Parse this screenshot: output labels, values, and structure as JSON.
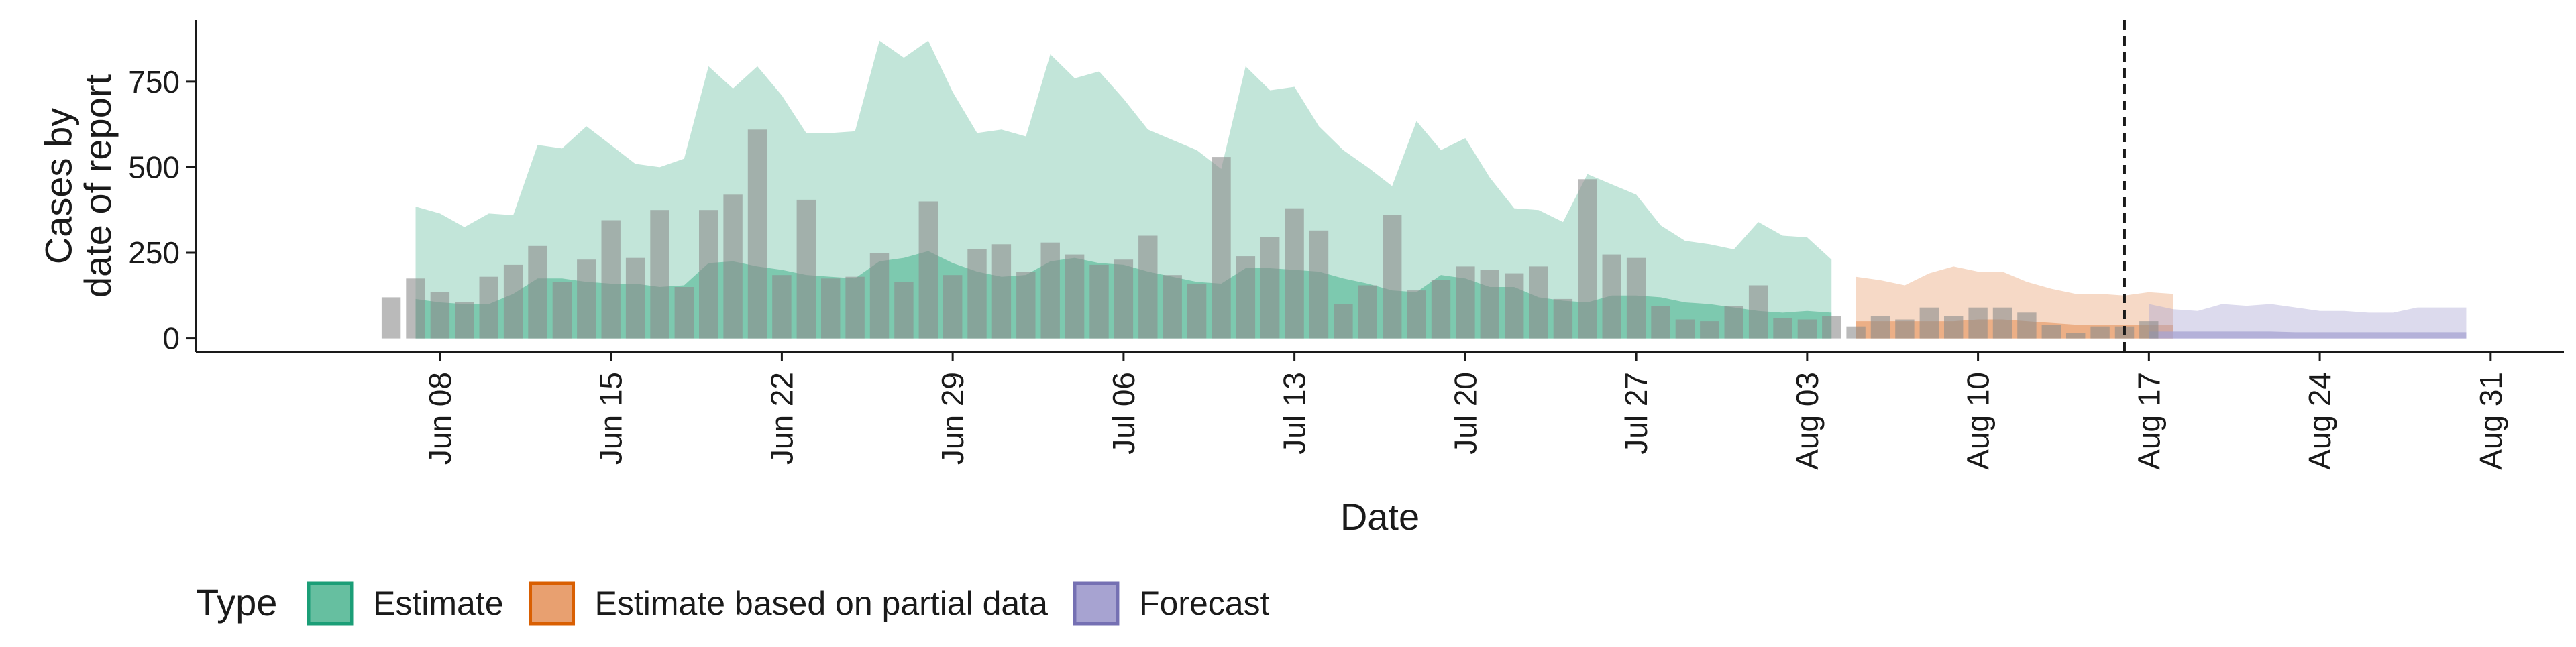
{
  "chart_data": {
    "type": "area",
    "xlabel": "Date",
    "ylabel": [
      "Cases by",
      "date of report"
    ],
    "x_range": [
      "2020-05-29",
      "2020-09-03"
    ],
    "ylim": [
      -40,
      930
    ],
    "yticks": [
      0,
      250,
      500,
      750
    ],
    "x_ticks": [
      {
        "date": "2020-06-08",
        "label": "Jun 08"
      },
      {
        "date": "2020-06-15",
        "label": "Jun 15"
      },
      {
        "date": "2020-06-22",
        "label": "Jun 22"
      },
      {
        "date": "2020-06-29",
        "label": "Jun 29"
      },
      {
        "date": "2020-07-06",
        "label": "Jul 06"
      },
      {
        "date": "2020-07-13",
        "label": "Jul 13"
      },
      {
        "date": "2020-07-20",
        "label": "Jul 20"
      },
      {
        "date": "2020-07-27",
        "label": "Jul 27"
      },
      {
        "date": "2020-08-03",
        "label": "Aug 03"
      },
      {
        "date": "2020-08-10",
        "label": "Aug 10"
      },
      {
        "date": "2020-08-17",
        "label": "Aug 17"
      },
      {
        "date": "2020-08-24",
        "label": "Aug 24"
      },
      {
        "date": "2020-08-31",
        "label": "Aug 31"
      }
    ],
    "vline_date": "2020-08-16",
    "grid": false,
    "legend": {
      "position": "bottom-left",
      "title": "Type"
    },
    "observed_cases": {
      "start_date": "2020-06-06",
      "color": "#8c8c8c",
      "values": [
        120,
        175,
        135,
        105,
        180,
        215,
        270,
        165,
        230,
        345,
        235,
        375,
        150,
        375,
        420,
        610,
        185,
        405,
        175,
        180,
        250,
        165,
        400,
        185,
        260,
        275,
        195,
        280,
        245,
        215,
        230,
        300,
        185,
        160,
        530,
        240,
        295,
        380,
        315,
        100,
        155,
        360,
        140,
        170,
        210,
        200,
        190,
        210,
        115,
        465,
        245,
        235,
        95,
        55,
        50,
        95,
        155,
        60,
        55,
        65,
        35,
        65,
        55,
        90,
        65,
        90,
        90,
        75,
        40,
        15,
        35,
        35,
        50
      ]
    },
    "series": [
      {
        "name": "Estimate",
        "color": "#1b9e77",
        "fill": "#66bfa0",
        "start_date": "2020-06-07",
        "lower": [
          0,
          0,
          0,
          0,
          0,
          0,
          0,
          0,
          0,
          0,
          0,
          0,
          0,
          0,
          0,
          0,
          0,
          0,
          0,
          0,
          0,
          0,
          0,
          0,
          0,
          0,
          0,
          0,
          0,
          0,
          0,
          0,
          0,
          0,
          0,
          0,
          0,
          0,
          0,
          0,
          0,
          0,
          0,
          0,
          0,
          0,
          0,
          0,
          0,
          0,
          0,
          0,
          0,
          0,
          0,
          0,
          0,
          0,
          0
        ],
        "median": [
          115,
          105,
          100,
          100,
          130,
          175,
          175,
          165,
          160,
          160,
          150,
          155,
          220,
          225,
          210,
          200,
          185,
          180,
          175,
          225,
          235,
          255,
          220,
          195,
          180,
          185,
          225,
          235,
          220,
          215,
          195,
          180,
          165,
          160,
          205,
          205,
          200,
          195,
          175,
          160,
          140,
          135,
          185,
          175,
          150,
          150,
          120,
          110,
          105,
          125,
          125,
          120,
          105,
          100,
          90,
          80,
          75,
          80,
          75
        ],
        "upper": [
          385,
          365,
          325,
          365,
          360,
          565,
          555,
          620,
          565,
          510,
          500,
          525,
          795,
          730,
          795,
          710,
          600,
          600,
          605,
          870,
          820,
          870,
          720,
          600,
          610,
          590,
          830,
          760,
          780,
          700,
          610,
          580,
          550,
          495,
          795,
          725,
          735,
          620,
          550,
          500,
          445,
          635,
          550,
          585,
          470,
          380,
          375,
          340,
          480,
          450,
          420,
          330,
          285,
          275,
          260,
          340,
          300,
          295,
          230
        ]
      },
      {
        "name": "Estimate based on partial data",
        "color": "#d95f02",
        "fill": "#e8a070",
        "start_date": "2020-08-05",
        "lower": [
          0,
          0,
          0,
          0,
          0,
          0,
          0,
          0,
          0,
          0,
          0,
          0,
          0,
          0
        ],
        "median": [
          50,
          50,
          50,
          50,
          50,
          55,
          55,
          50,
          45,
          40,
          40,
          40,
          40,
          40
        ],
        "upper": [
          180,
          170,
          155,
          190,
          210,
          195,
          195,
          165,
          145,
          130,
          130,
          125,
          135,
          130
        ]
      },
      {
        "name": "Forecast",
        "color": "#7570b3",
        "fill": "#a7a3d1",
        "start_date": "2020-08-17",
        "lower": [
          0,
          0,
          0,
          0,
          0,
          0,
          0,
          0,
          0,
          0,
          0,
          0,
          0,
          0
        ],
        "median": [
          20,
          20,
          20,
          20,
          20,
          20,
          18,
          18,
          18,
          18,
          18,
          18,
          18,
          18
        ],
        "upper": [
          100,
          85,
          80,
          100,
          95,
          100,
          90,
          80,
          80,
          75,
          75,
          90,
          90,
          90
        ]
      }
    ]
  }
}
